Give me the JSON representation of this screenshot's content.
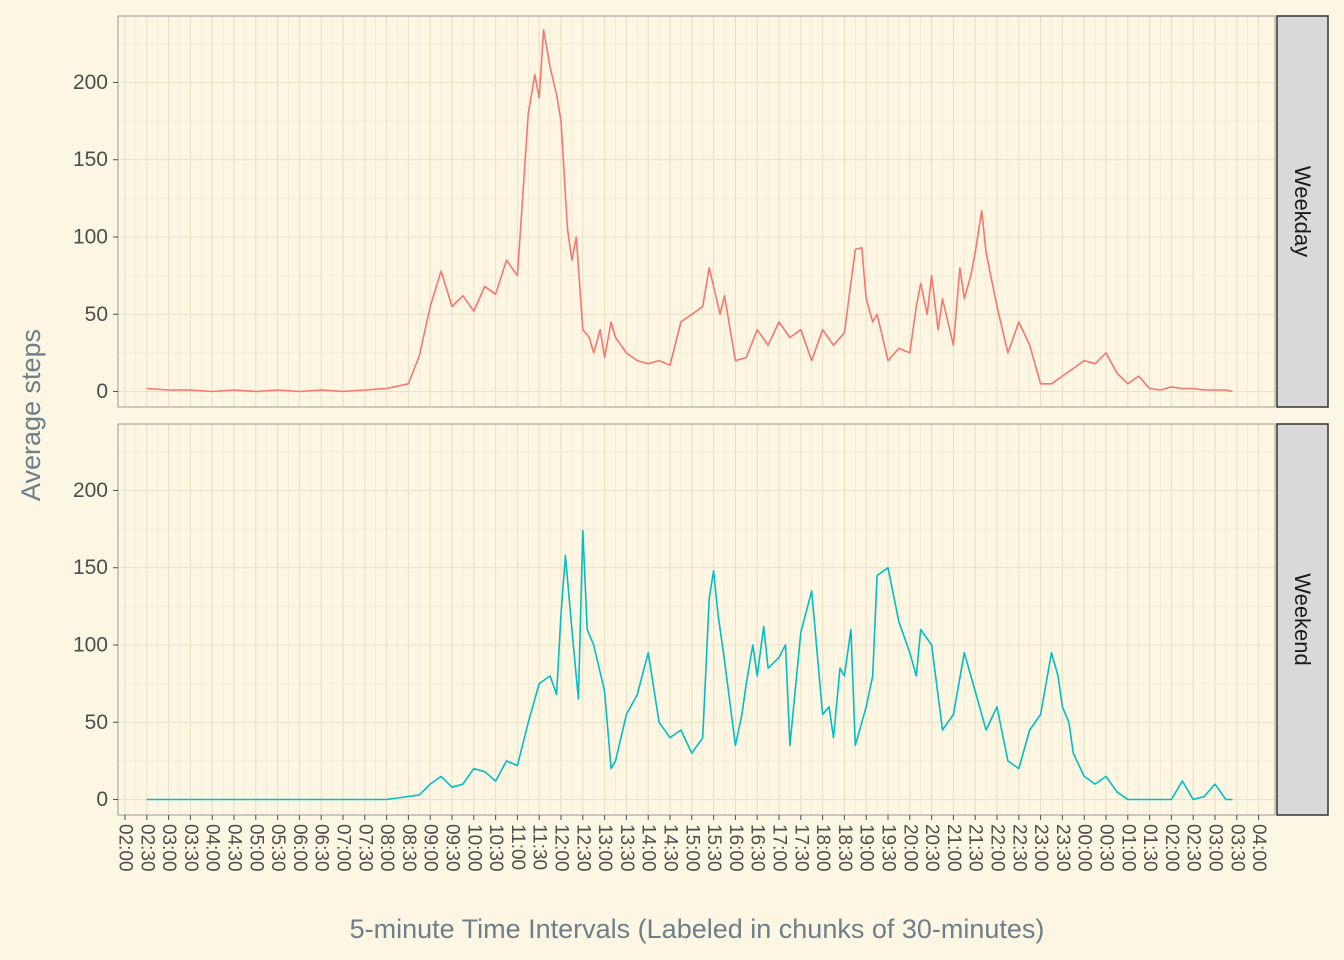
{
  "chart_data": {
    "type": "line",
    "xlabel": "5-minute Time Intervals (Labeled in chunks of 30-minutes)",
    "ylabel": "Average steps",
    "ylim": [
      -10,
      243
    ],
    "yticks": [
      0,
      50,
      100,
      150,
      200
    ],
    "grid": true,
    "xtick_labels": [
      "02:00",
      "02:30",
      "03:00",
      "03:30",
      "04:00",
      "04:30",
      "05:00",
      "05:30",
      "06:00",
      "06:30",
      "07:00",
      "07:30",
      "08:00",
      "08:30",
      "09:00",
      "09:30",
      "10:00",
      "10:30",
      "11:00",
      "11:30",
      "12:00",
      "12:30",
      "13:00",
      "13:30",
      "14:00",
      "14:30",
      "15:00",
      "15:30",
      "16:00",
      "16:30",
      "17:00",
      "17:30",
      "18:00",
      "18:30",
      "19:00",
      "19:30",
      "20:00",
      "20:30",
      "21:00",
      "21:30",
      "22:00",
      "22:30",
      "23:00",
      "23:30",
      "00:00",
      "00:30",
      "01:00",
      "01:30",
      "02:00",
      "02:30",
      "03:00",
      "03:30",
      "04:00"
    ],
    "panels": [
      {
        "label": "Weekday",
        "color": "#F8766D",
        "x_hours": [
          2.5,
          3,
          3.5,
          4,
          4.5,
          5,
          5.5,
          6,
          6.5,
          7,
          7.5,
          8,
          8.5,
          8.75,
          9,
          9.25,
          9.5,
          9.75,
          10,
          10.25,
          10.5,
          10.75,
          11,
          11.25,
          11.4,
          11.5,
          11.6,
          11.75,
          11.9,
          12,
          12.15,
          12.25,
          12.35,
          12.5,
          12.65,
          12.75,
          12.9,
          13,
          13.15,
          13.25,
          13.5,
          13.75,
          14,
          14.25,
          14.5,
          14.75,
          15,
          15.25,
          15.4,
          15.5,
          15.65,
          15.75,
          16,
          16.25,
          16.5,
          16.75,
          17,
          17.25,
          17.5,
          17.75,
          18,
          18.25,
          18.5,
          18.75,
          18.9,
          19,
          19.15,
          19.25,
          19.5,
          19.75,
          20,
          20.15,
          20.25,
          20.4,
          20.5,
          20.65,
          20.75,
          21,
          21.15,
          21.25,
          21.4,
          21.5,
          21.65,
          21.75,
          22,
          22.25,
          22.5,
          22.75,
          23,
          23.25,
          23.5,
          23.75,
          24,
          24.25,
          24.5,
          24.75,
          25,
          25.25,
          25.5,
          25.75,
          26,
          26.25,
          26.5,
          26.75,
          27,
          27.25,
          27.4
        ],
        "y": [
          2,
          1,
          1,
          0,
          1,
          0,
          1,
          0,
          1,
          0,
          1,
          2,
          5,
          23,
          55,
          78,
          55,
          62,
          52,
          68,
          63,
          85,
          75,
          180,
          205,
          190,
          234,
          210,
          192,
          175,
          105,
          85,
          100,
          40,
          35,
          25,
          40,
          22,
          45,
          35,
          25,
          20,
          18,
          20,
          17,
          45,
          50,
          55,
          80,
          68,
          50,
          62,
          20,
          22,
          40,
          30,
          45,
          35,
          40,
          20,
          40,
          30,
          38,
          92,
          93,
          60,
          45,
          50,
          20,
          28,
          25,
          55,
          70,
          50,
          75,
          40,
          60,
          30,
          80,
          60,
          75,
          90,
          117,
          90,
          55,
          25,
          45,
          30,
          5,
          5,
          10,
          15,
          20,
          18,
          25,
          12,
          5,
          10,
          2,
          1,
          3,
          2,
          2,
          1,
          1,
          1,
          0
        ]
      },
      {
        "label": "Weekend",
        "color": "#00BFC4",
        "x_hours": [
          2.5,
          3,
          3.5,
          4,
          4.5,
          5,
          5.5,
          6,
          6.5,
          7,
          7.5,
          8,
          8.5,
          8.75,
          9,
          9.25,
          9.5,
          9.75,
          10,
          10.25,
          10.5,
          10.75,
          11,
          11.25,
          11.5,
          11.75,
          11.9,
          12,
          12.1,
          12.25,
          12.4,
          12.5,
          12.6,
          12.75,
          13,
          13.15,
          13.25,
          13.5,
          13.75,
          14,
          14.25,
          14.5,
          14.75,
          15,
          15.25,
          15.4,
          15.5,
          15.6,
          15.75,
          16,
          16.15,
          16.25,
          16.4,
          16.5,
          16.65,
          16.75,
          17,
          17.15,
          17.25,
          17.5,
          17.75,
          18,
          18.15,
          18.25,
          18.4,
          18.5,
          18.65,
          18.75,
          19,
          19.15,
          19.25,
          19.5,
          19.75,
          20,
          20.15,
          20.25,
          20.5,
          20.75,
          21,
          21.25,
          21.5,
          21.75,
          22,
          22.25,
          22.5,
          22.75,
          23,
          23.25,
          23.4,
          23.5,
          23.65,
          23.75,
          24,
          24.25,
          24.5,
          24.75,
          25,
          25.25,
          25.5,
          25.75,
          26,
          26.25,
          26.5,
          26.75,
          27,
          27.25,
          27.4
        ],
        "y": [
          0,
          0,
          0,
          0,
          0,
          0,
          0,
          0,
          0,
          0,
          0,
          0,
          2,
          3,
          10,
          15,
          8,
          10,
          20,
          18,
          12,
          25,
          22,
          50,
          75,
          80,
          68,
          120,
          158,
          110,
          65,
          174,
          110,
          100,
          70,
          20,
          25,
          55,
          68,
          95,
          50,
          40,
          45,
          30,
          40,
          130,
          148,
          120,
          90,
          35,
          55,
          75,
          100,
          80,
          112,
          85,
          92,
          100,
          35,
          108,
          135,
          55,
          60,
          40,
          85,
          80,
          110,
          35,
          60,
          80,
          145,
          150,
          115,
          95,
          80,
          110,
          100,
          45,
          55,
          95,
          70,
          45,
          60,
          25,
          20,
          45,
          55,
          95,
          80,
          60,
          50,
          30,
          15,
          10,
          15,
          5,
          0,
          0,
          0,
          0,
          0,
          12,
          0,
          2,
          10,
          0,
          0
        ]
      }
    ]
  }
}
